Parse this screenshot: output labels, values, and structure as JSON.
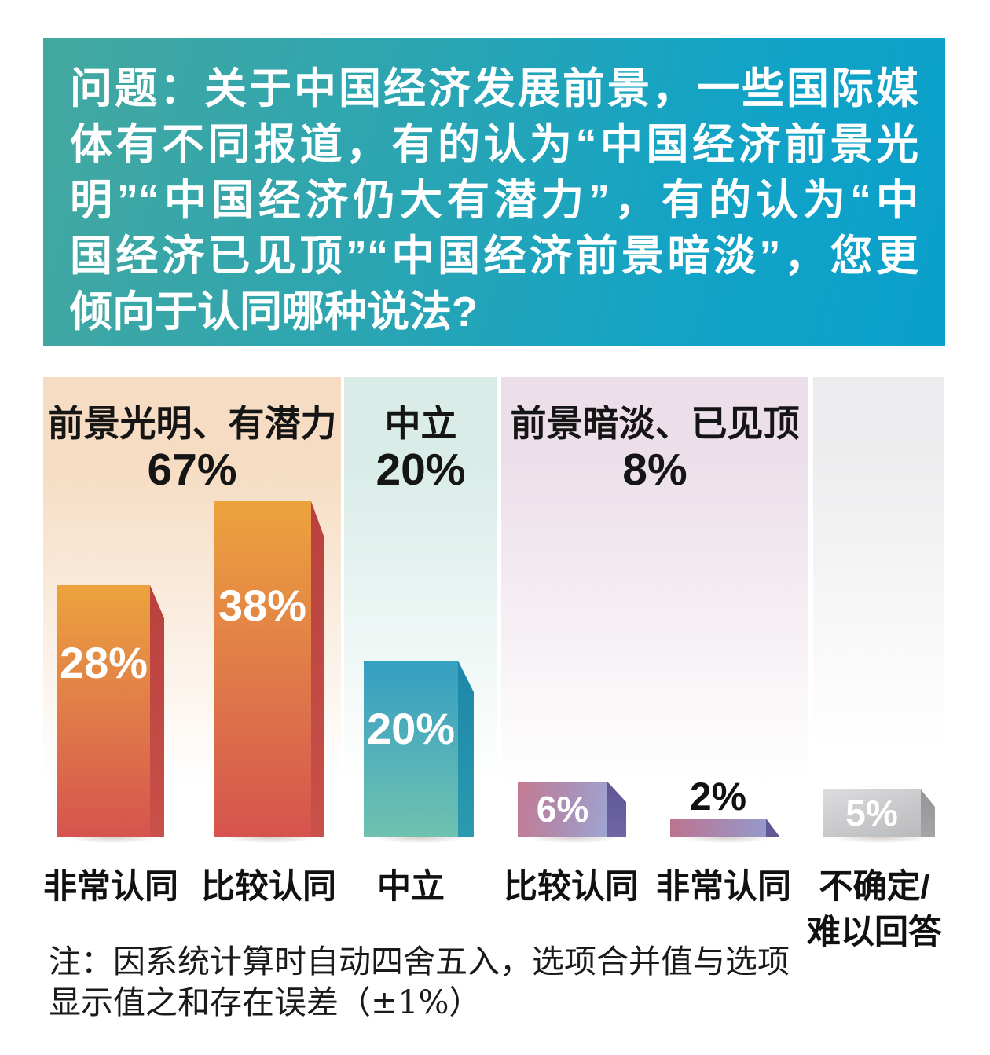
{
  "question": {
    "lines": [
      "问题：关于中国经济发展前景，一些国际媒",
      "体有不同报道，有的认为“中国经济前景光",
      "明”“中国经济仍大有潜力”，有的认为“中",
      "国经济已见顶”“中国经济前景暗淡”，您更",
      "倾向于认同哪种说法?"
    ],
    "bg_gradient": [
      "#44a89f",
      "#0aa0cb"
    ],
    "text_color": "#ffffff"
  },
  "chart_data": {
    "type": "bar",
    "unit": "percent",
    "categories": [
      "非常认同",
      "比较认同",
      "中立",
      "比较认同",
      "非常认同",
      "不确定/\n难以回答"
    ],
    "values": [
      28,
      38,
      20,
      6,
      2,
      5
    ],
    "value_labels": [
      "28%",
      "38%",
      "20%",
      "6%",
      "2%",
      "5%"
    ],
    "groups": [
      {
        "label": "前景光明、有潜力",
        "value": 67,
        "display": "67%",
        "bar_categories": [
          "非常认同",
          "比较认同"
        ],
        "panel_tint": "#f6dcc2"
      },
      {
        "label": "中立",
        "value": 20,
        "display": "20%",
        "bar_categories": [
          "中立"
        ],
        "panel_tint": "#d9ece8"
      },
      {
        "label": "前景暗淡、已见顶",
        "value": 8,
        "display": "8%",
        "bar_categories": [
          "比较认同",
          "非常认同"
        ],
        "panel_tint": "#ecdfe9"
      },
      {
        "label": "",
        "value": null,
        "display": "",
        "bar_categories": [
          "不确定/难以回答"
        ],
        "panel_tint": "#ececee"
      }
    ],
    "bar_colors": [
      {
        "front_top": "#eca33d",
        "front_bottom": "#d5544e",
        "side": "#c24946"
      },
      {
        "front_top": "#eca33d",
        "front_bottom": "#d5544e",
        "side": "#c24946"
      },
      {
        "front_top": "#349fc1",
        "front_bottom": "#6fc2af",
        "side": "#1e87a8"
      },
      {
        "front_top": "#c47a92",
        "front_bottom": "#9fa5d3",
        "side": "#675d9c"
      },
      {
        "front_top": "#bd7390",
        "front_bottom": "#9599cb",
        "side": "#5f5a96"
      },
      {
        "front_top": "#dddddf",
        "front_bottom": "#b9babc",
        "side": "#9c9d9f"
      },
      {
        "value_label_inside": "#ffffff",
        "value_label_above": "#111111"
      }
    ],
    "ylim": [
      0,
      40
    ],
    "grid": false,
    "legend": false
  },
  "note": {
    "lines": [
      "注：因系统计算时自动四舍五入，选项合并值与选项",
      "显示值之和存在误差（±1%）"
    ]
  }
}
